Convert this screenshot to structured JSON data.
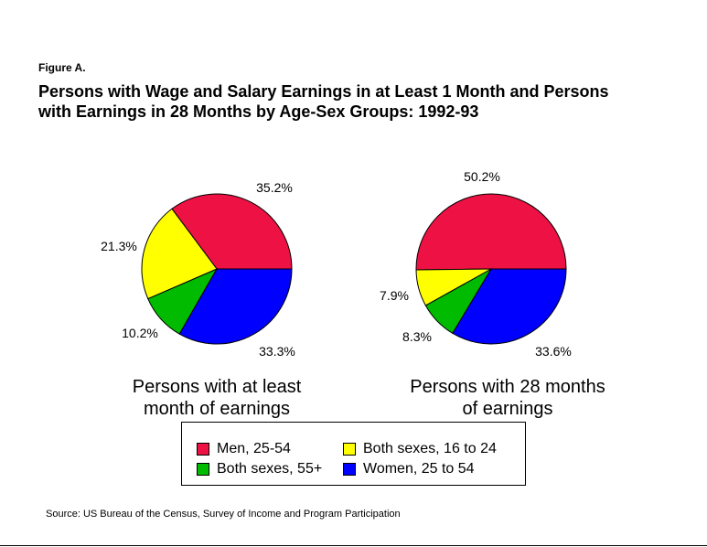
{
  "figure_label": "Figure A.",
  "title_line1": "Persons with Wage and Salary Earnings in at Least 1 Month and Persons",
  "title_line2": "with Earnings in 28 Months by Age-Sex Groups: 1992-93",
  "colors": {
    "men_25_54": "#ee1144",
    "both_16_24": "#ffff00",
    "both_55_plus": "#00bb00",
    "women_25_54": "#0000ff"
  },
  "chart_data": [
    {
      "type": "pie",
      "title_line1": "Persons with at least",
      "title_line2": "month of earnings",
      "labels": [
        "Men, 25-54",
        "Women, 25 to 54",
        "Both sexes, 55+",
        "Both sexes, 16 to 24"
      ],
      "values": [
        35.2,
        33.3,
        10.2,
        21.3
      ],
      "value_labels": [
        "35.2%",
        "33.3%",
        "10.2%",
        "21.3%"
      ]
    },
    {
      "type": "pie",
      "title_line1": "Persons with 28 months",
      "title_line2": "of earnings",
      "labels": [
        "Men, 25-54",
        "Women, 25 to 54",
        "Both sexes, 55+",
        "Both sexes, 16 to 24"
      ],
      "values": [
        50.2,
        33.6,
        8.3,
        7.9
      ],
      "value_labels": [
        "50.2%",
        "33.6%",
        "8.3%",
        "7.9%"
      ]
    }
  ],
  "legend": [
    {
      "label": "Men, 25-54",
      "color": "#ee1144"
    },
    {
      "label": "Both sexes, 16 to 24",
      "color": "#ffff00"
    },
    {
      "label": "Both sexes, 55+",
      "color": "#00bb00"
    },
    {
      "label": "Women, 25 to 54",
      "color": "#0000ff"
    }
  ],
  "source": "Source: US Bureau of the Census, Survey of Income and Program Participation"
}
